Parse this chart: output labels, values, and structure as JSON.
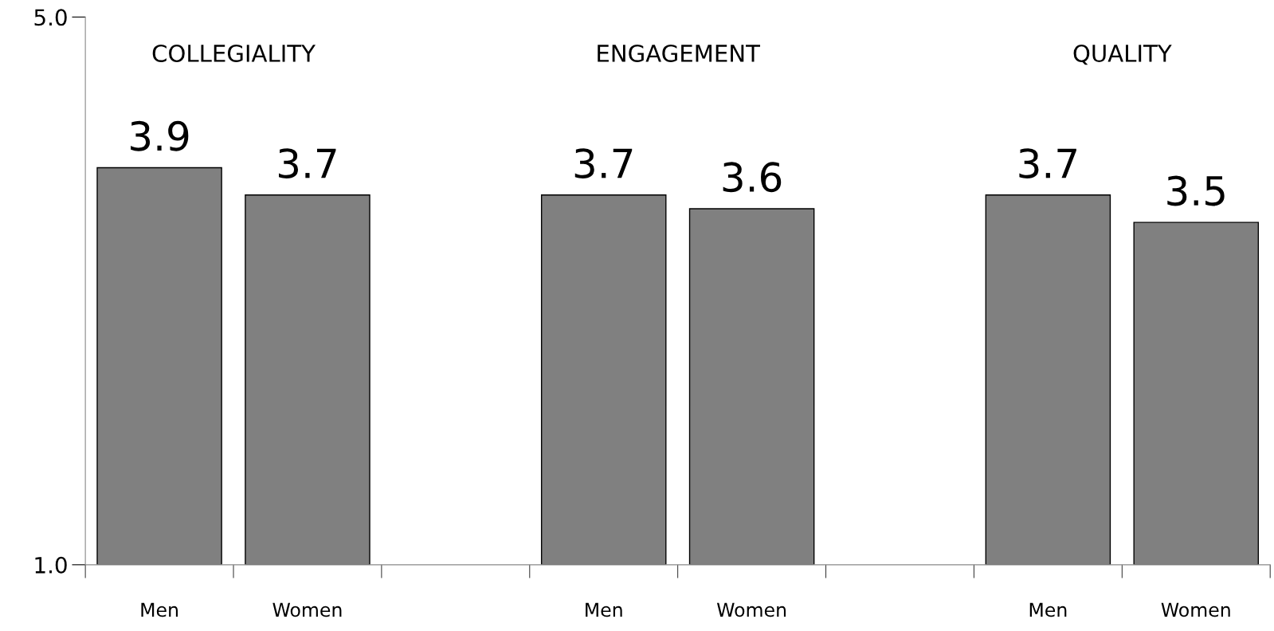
{
  "chart_data": {
    "type": "bar",
    "categories": [
      "Men",
      "Women",
      null,
      "Men",
      "Women",
      null,
      "Men",
      "Women"
    ],
    "series": [
      {
        "color": "#808080",
        "values": [
          3.9,
          3.7,
          null,
          3.7,
          3.6,
          null,
          3.7,
          3.5
        ]
      }
    ],
    "data_labels": true,
    "annotations": [
      "COLLEGIALITY",
      "ENGAGEMENT",
      "QUALITY"
    ],
    "ylim": [
      1,
      5
    ],
    "yticks": [
      {
        "value": 1,
        "label": "1.0"
      },
      {
        "value": 5,
        "label": "5.0"
      }
    ],
    "grid": false
  }
}
